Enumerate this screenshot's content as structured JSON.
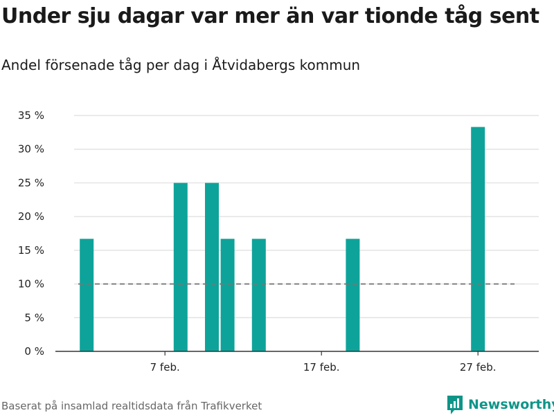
{
  "title": "Under sju dagar var mer än var tionde tåg sent",
  "subtitle": "Andel försenade tåg per dag i Åtvidabergs kommun",
  "source": "Baserat på insamlad realtidsdata från Trafikverket",
  "brand": {
    "name": "Newsworthy",
    "icon": "newsworthy-logo-icon"
  },
  "colors": {
    "bar": "#0ea39a",
    "reference_line": "#777777",
    "grid": "#dddddd",
    "axis": "#333333",
    "brand": "#0e9588"
  },
  "chart_data": {
    "type": "bar",
    "title": "Under sju dagar var mer än var tionde tåg sent",
    "subtitle": "Andel försenade tåg per dag i Åtvidabergs kommun",
    "xlabel": "",
    "ylabel": "",
    "unit": "%",
    "x": [
      "2 feb.",
      "8 feb.",
      "10 feb.",
      "11 feb.",
      "13 feb.",
      "19 feb.",
      "27 feb."
    ],
    "values": [
      16.7,
      25,
      25,
      16.7,
      16.7,
      16.7,
      33.3
    ],
    "xlim": [
      "31 jan.",
      "29 feb."
    ],
    "ylim": [
      0,
      35
    ],
    "yticks": [
      0,
      5,
      10,
      15,
      20,
      25,
      30,
      35
    ],
    "ytick_labels": [
      "0 %",
      "5 %",
      "10 %",
      "15 %",
      "20 %",
      "25 %",
      "30 %",
      "35 %"
    ],
    "xtick_labels": [
      "7 feb.",
      "17 feb.",
      "27 feb."
    ],
    "reference_line": {
      "value": 10,
      "style": "dashed"
    },
    "grid": true,
    "legend": "none"
  }
}
